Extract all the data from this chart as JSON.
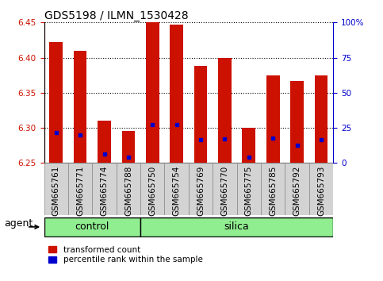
{
  "title": "GDS5198 / ILMN_1530428",
  "samples": [
    "GSM665761",
    "GSM665771",
    "GSM665774",
    "GSM665788",
    "GSM665750",
    "GSM665754",
    "GSM665769",
    "GSM665770",
    "GSM665775",
    "GSM665785",
    "GSM665792",
    "GSM665793"
  ],
  "groups": [
    "control",
    "control",
    "control",
    "control",
    "silica",
    "silica",
    "silica",
    "silica",
    "silica",
    "silica",
    "silica",
    "silica"
  ],
  "bar_tops": [
    6.422,
    6.41,
    6.31,
    6.295,
    6.45,
    6.447,
    6.388,
    6.4,
    6.3,
    6.375,
    6.367,
    6.375
  ],
  "bar_base": 6.25,
  "blue_dot_values": [
    6.293,
    6.29,
    6.263,
    6.258,
    6.305,
    6.305,
    6.283,
    6.284,
    6.258,
    6.285,
    6.275,
    6.283
  ],
  "ylim": [
    6.25,
    6.45
  ],
  "yticks": [
    6.25,
    6.3,
    6.35,
    6.4,
    6.45
  ],
  "right_ytick_vals": [
    0,
    25,
    50,
    75,
    100
  ],
  "right_ytick_labels": [
    "0",
    "25",
    "50",
    "75",
    "100%"
  ],
  "right_ylim": [
    0,
    100
  ],
  "bar_color": "#CC1100",
  "dot_color": "#0000CC",
  "group_color": "#90EE90",
  "xtick_bg": "#D3D3D3",
  "legend_red": "transformed count",
  "legend_blue": "percentile rank within the sample",
  "bar_width": 0.55,
  "title_fontsize": 10,
  "tick_fontsize": 7.5,
  "group_fontsize": 9,
  "legend_fontsize": 7.5,
  "control_count": 4,
  "silica_count": 8
}
